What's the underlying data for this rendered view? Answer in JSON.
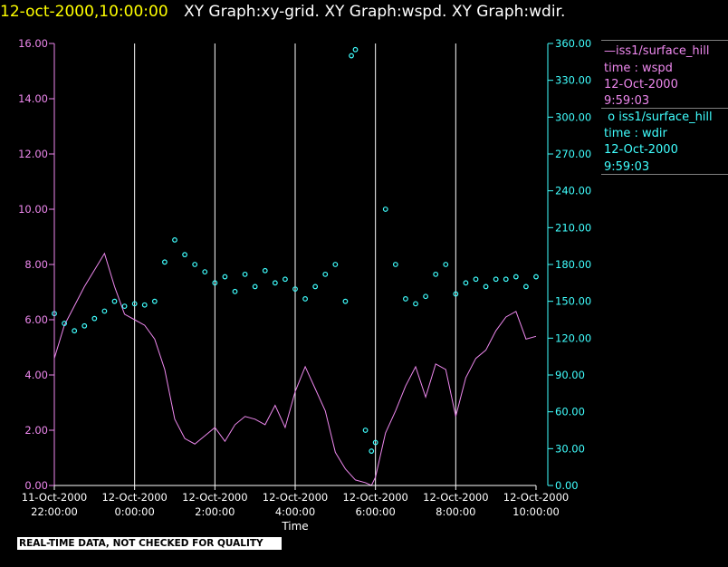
{
  "header": {
    "time": "12-oct-2000,10:00:00",
    "graphs": "XY Graph:xy-grid.  XY Graph:wspd.  XY Graph:wdir."
  },
  "banner": "REAL-TIME DATA, NOT CHECKED FOR QUALITY",
  "legend": {
    "wspd": {
      "series": "iss1/surface_hill",
      "var": "time : wspd",
      "date": "12-Oct-2000",
      "time": "9:59:03"
    },
    "wdir": {
      "series": "iss1/surface_hill",
      "var": "time : wdir",
      "date": "12-Oct-2000",
      "time": "9:59:03"
    }
  },
  "colors": {
    "wspd": "#ee88ee",
    "wdir": "#40ffff",
    "grid": "#ffffff",
    "text": "#ffffff",
    "background": "#000000"
  },
  "chart_data": {
    "type": "line",
    "xlabel": "Time",
    "x_ticks": [
      {
        "date": "11-Oct-2000",
        "time": "22:00:00"
      },
      {
        "date": "12-Oct-2000",
        "time": "0:00:00"
      },
      {
        "date": "12-Oct-2000",
        "time": "2:00:00"
      },
      {
        "date": "12-Oct-2000",
        "time": "4:00:00"
      },
      {
        "date": "12-Oct-2000",
        "time": "6:00:00"
      },
      {
        "date": "12-Oct-2000",
        "time": "8:00:00"
      },
      {
        "date": "12-Oct-2000",
        "time": "10:00:00"
      }
    ],
    "x_range_hours": [
      "11-Oct-2000 22:00:00",
      "12-Oct-2000 10:00:00"
    ],
    "ylim_left": [
      0,
      16
    ],
    "yticks_left": [
      "0.00",
      "2.00",
      "4.00",
      "6.00",
      "8.00",
      "10.00",
      "12.00",
      "14.00",
      "16.00"
    ],
    "ylim_right": [
      0,
      360
    ],
    "yticks_right": [
      "0.00",
      "30.00",
      "60.00",
      "90.00",
      "120.00",
      "150.00",
      "180.00",
      "210.00",
      "240.00",
      "270.00",
      "300.00",
      "330.00",
      "360.00"
    ],
    "grid": "vertical",
    "series": [
      {
        "name": "iss1/surface_hill time : wspd",
        "axis": "left",
        "style": "line",
        "hours": [
          22.0,
          22.25,
          22.5,
          22.75,
          23.0,
          23.25,
          23.5,
          23.75,
          24.0,
          24.25,
          24.5,
          24.75,
          25.0,
          25.25,
          25.5,
          25.75,
          26.0,
          26.25,
          26.5,
          26.75,
          27.0,
          27.25,
          27.5,
          27.75,
          28.0,
          28.25,
          28.5,
          28.75,
          29.0,
          29.25,
          29.5,
          29.75,
          29.9,
          30.0,
          30.25,
          30.5,
          30.75,
          31.0,
          31.25,
          31.5,
          31.75,
          32.0,
          32.25,
          32.5,
          32.75,
          33.0,
          33.25,
          33.5,
          33.75,
          34.0
        ],
        "values": [
          4.6,
          5.8,
          6.5,
          7.2,
          7.8,
          8.4,
          7.2,
          6.2,
          6.0,
          5.8,
          5.3,
          4.2,
          2.4,
          1.7,
          1.5,
          1.8,
          2.1,
          1.6,
          2.2,
          2.5,
          2.4,
          2.2,
          2.9,
          2.1,
          3.4,
          4.3,
          3.5,
          2.7,
          1.2,
          0.6,
          0.2,
          0.1,
          0.0,
          0.3,
          1.9,
          2.7,
          3.6,
          4.3,
          3.2,
          4.4,
          4.2,
          2.5,
          3.9,
          4.6,
          4.9,
          5.6,
          6.1,
          6.3,
          5.3,
          5.4
        ]
      },
      {
        "name": "iss1/surface_hill time : wdir",
        "axis": "right",
        "style": "circle",
        "hours": [
          22.0,
          22.25,
          22.5,
          22.75,
          23.0,
          23.25,
          23.5,
          23.75,
          24.0,
          24.25,
          24.5,
          24.75,
          25.0,
          25.25,
          25.5,
          25.75,
          26.0,
          26.25,
          26.5,
          26.75,
          27.0,
          27.25,
          27.5,
          27.75,
          28.0,
          28.25,
          28.5,
          28.75,
          29.0,
          29.25,
          29.4,
          29.5,
          29.75,
          29.9,
          30.0,
          30.25,
          30.5,
          30.75,
          31.0,
          31.25,
          31.5,
          31.75,
          32.0,
          32.25,
          32.5,
          32.75,
          33.0,
          33.25,
          33.5,
          33.75,
          34.0
        ],
        "values": [
          140,
          132,
          126,
          130,
          136,
          142,
          150,
          146,
          148,
          147,
          150,
          182,
          200,
          188,
          180,
          174,
          165,
          170,
          158,
          172,
          162,
          175,
          165,
          168,
          160,
          152,
          162,
          172,
          180,
          150,
          350,
          355,
          45,
          28,
          35,
          225,
          180,
          152,
          148,
          154,
          172,
          180,
          156,
          165,
          168,
          162,
          168,
          168,
          170,
          162,
          170
        ]
      }
    ]
  }
}
